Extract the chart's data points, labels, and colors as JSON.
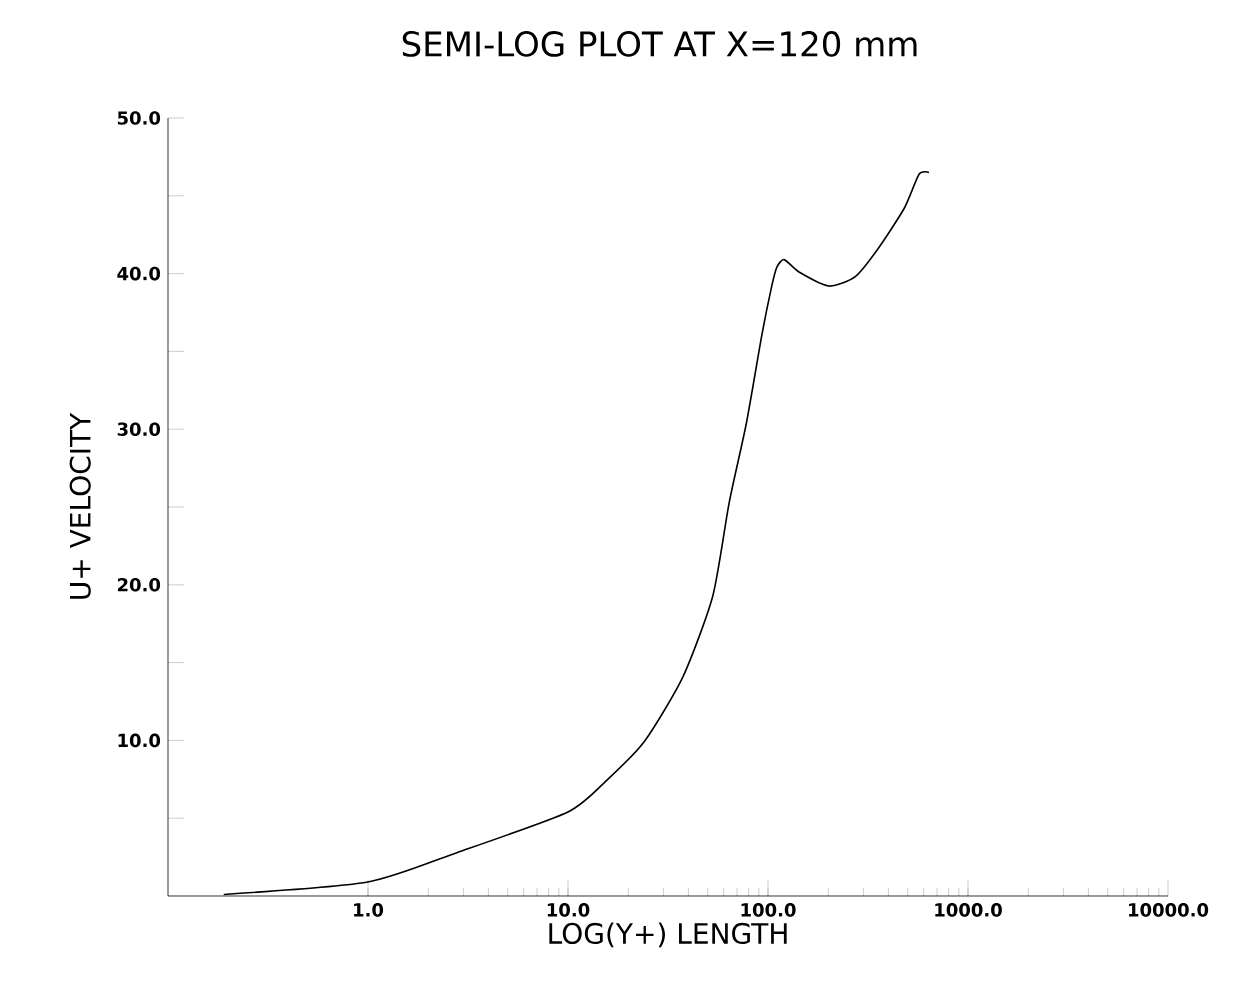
{
  "chart_data": {
    "type": "line",
    "title": "SEMI-LOG PLOT AT X=120 mm",
    "xlabel": "LOG(Y+)     LENGTH",
    "ylabel": "U+    VELOCITY",
    "log": "x",
    "grid": false,
    "marker": "none",
    "line_style": "solid",
    "xlim": [
      0.1,
      10000
    ],
    "ylim": [
      0,
      50
    ],
    "xticks": [
      {
        "value": 1,
        "label": "1.0"
      },
      {
        "value": 10,
        "label": "10.0"
      },
      {
        "value": 100,
        "label": "100.0"
      },
      {
        "value": 1000,
        "label": "1000.0"
      },
      {
        "value": 10000,
        "label": "10000.0"
      }
    ],
    "yticks": [
      {
        "value": 5,
        "label": null
      },
      {
        "value": 10,
        "label": "10.0"
      },
      {
        "value": 15,
        "label": null
      },
      {
        "value": 20,
        "label": "20.0"
      },
      {
        "value": 25,
        "label": null
      },
      {
        "value": 30,
        "label": "30.0"
      },
      {
        "value": 35,
        "label": null
      },
      {
        "value": 40,
        "label": "40.0"
      },
      {
        "value": 45,
        "label": null
      },
      {
        "value": 50,
        "label": "50.0"
      }
    ],
    "x": [
      0.19,
      1,
      2.8,
      10,
      15.8,
      24.3,
      37.6,
      53,
      64,
      78,
      93,
      104,
      110.6,
      120.5,
      143,
      202,
      273,
      355,
      480,
      570,
      638
    ],
    "series": [
      {
        "color": "#000000",
        "values": [
          0.1,
          0.9,
          2.8,
          5.4,
          7.5,
          10.0,
          14.1,
          19.3,
          25.3,
          30.4,
          36.0,
          39.1,
          40.4,
          40.9,
          40.1,
          39.2,
          39.8,
          41.6,
          44.2,
          46.4,
          46.5
        ]
      }
    ]
  }
}
